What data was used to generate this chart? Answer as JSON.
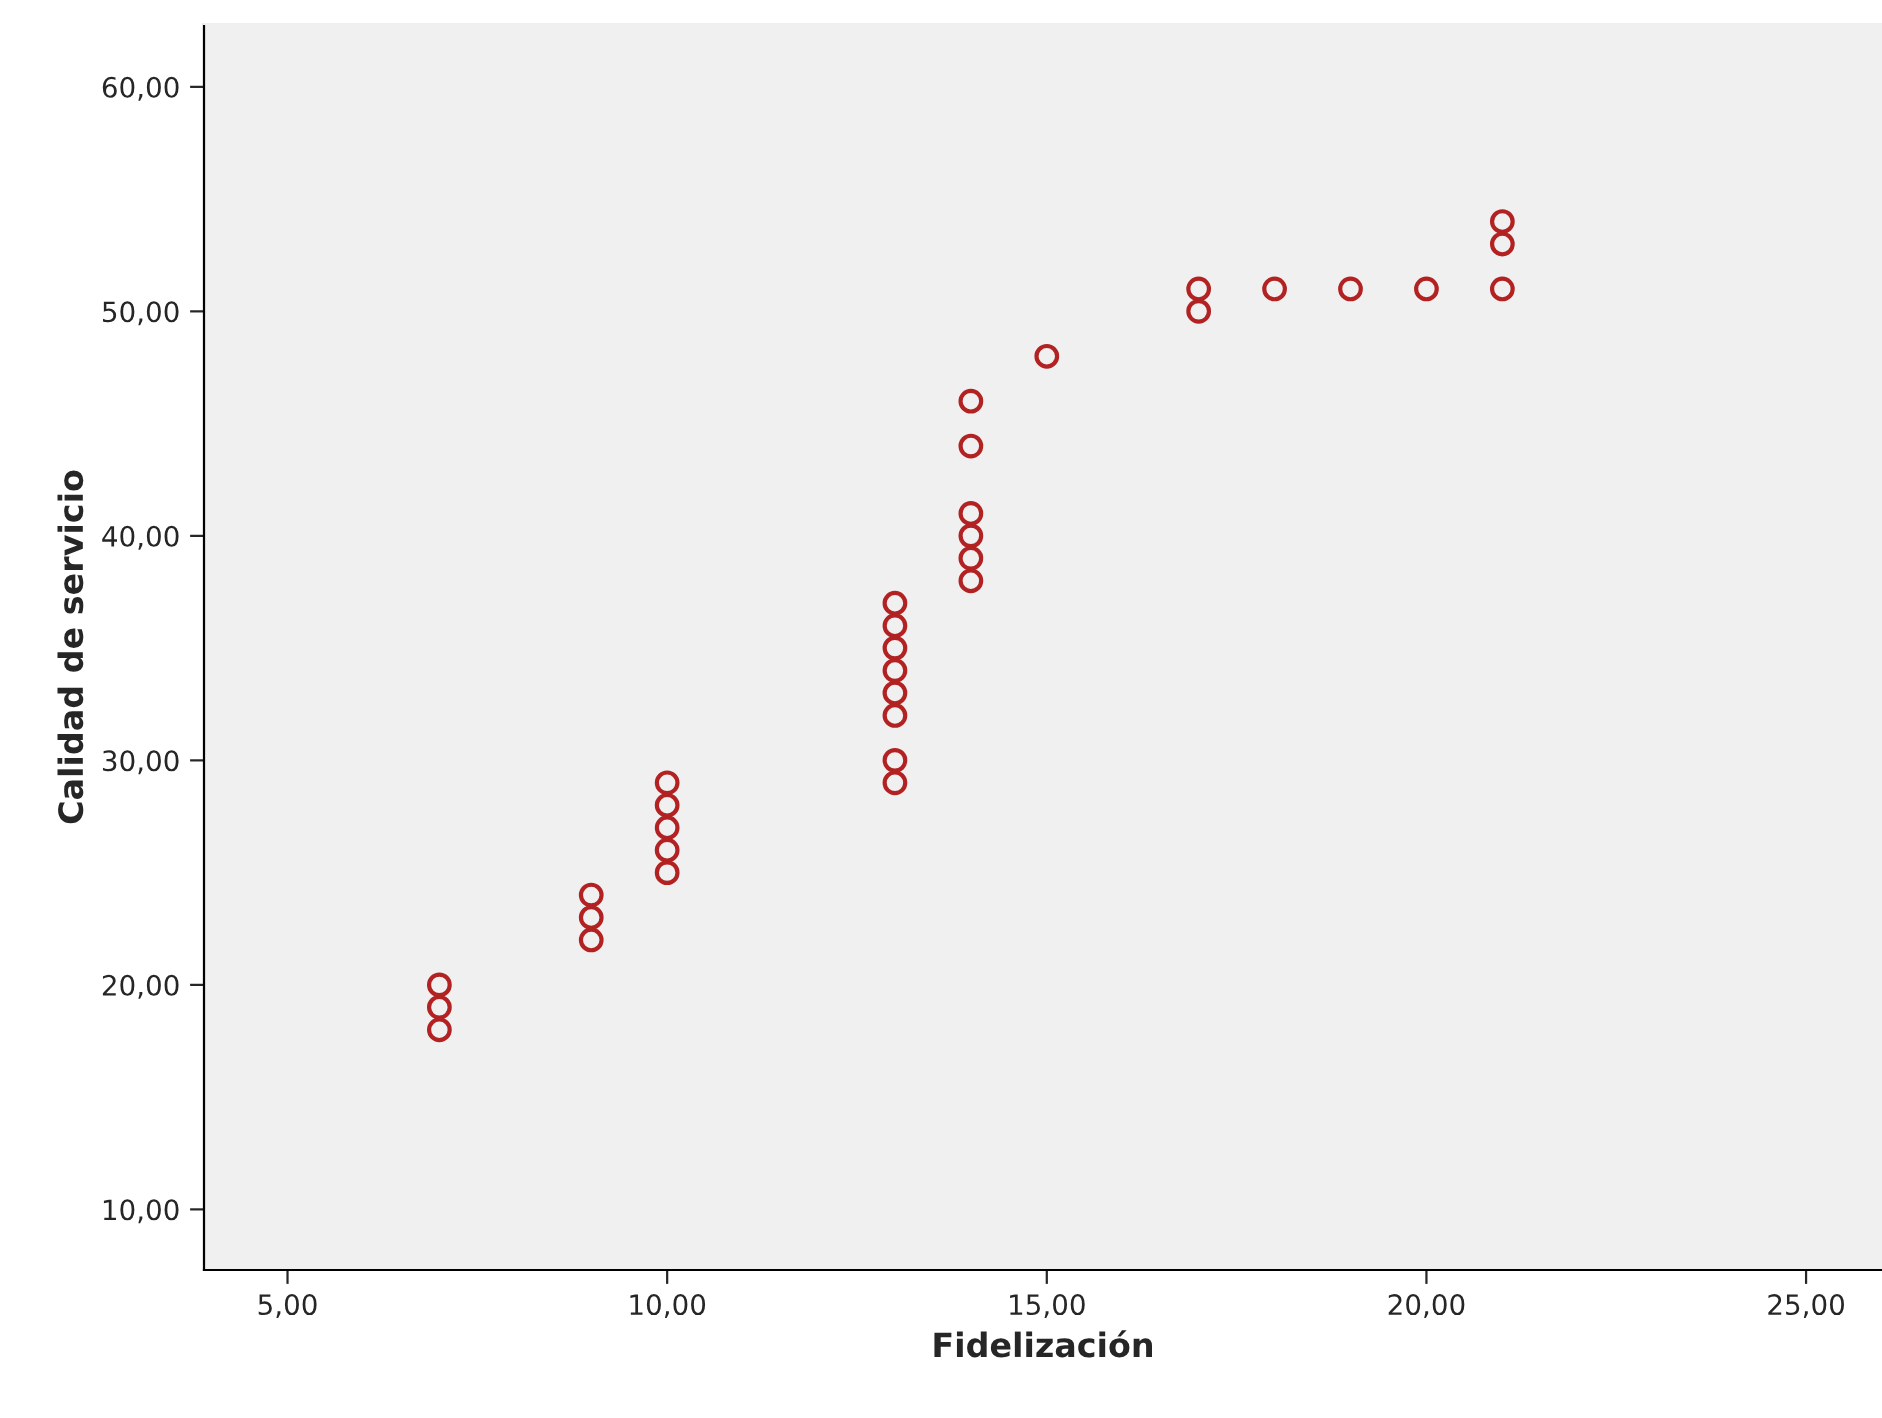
{
  "chart_data": {
    "type": "scatter",
    "xlabel": "Fidelización",
    "ylabel": "Calidad de servicio",
    "x": [
      7,
      7,
      7,
      9,
      9,
      9,
      10,
      10,
      10,
      10,
      10,
      13,
      13,
      13,
      13,
      13,
      13,
      13,
      13,
      14,
      14,
      14,
      14,
      14,
      14,
      15,
      17,
      17,
      18,
      19,
      20,
      21,
      21,
      21
    ],
    "series": [
      {
        "color": "#b22222",
        "values": [
          20,
          19,
          18,
          24,
          23,
          22,
          29,
          28,
          27,
          26,
          25,
          37,
          36,
          35,
          34,
          33,
          32,
          30,
          29,
          46,
          44,
          41,
          40,
          39,
          38,
          48,
          51,
          50,
          51,
          51,
          51,
          54,
          53,
          51
        ]
      }
    ],
    "xlim": [
      3.9,
      26
    ],
    "ylim": [
      7.3,
      62.8
    ],
    "xticks": [
      {
        "value": 5,
        "label": "5,00"
      },
      {
        "value": 10,
        "label": "10,00"
      },
      {
        "value": 15,
        "label": "15,00"
      },
      {
        "value": 20,
        "label": "20,00"
      },
      {
        "value": 25,
        "label": "25,00"
      }
    ],
    "yticks": [
      {
        "value": 10,
        "label": "10,00"
      },
      {
        "value": 20,
        "label": "20,00"
      },
      {
        "value": 30,
        "label": "30,00"
      },
      {
        "value": 40,
        "label": "40,00"
      },
      {
        "value": 50,
        "label": "50,00"
      },
      {
        "value": 60,
        "label": "60,00"
      }
    ],
    "marker": "circle",
    "grid": false,
    "legend": false
  }
}
